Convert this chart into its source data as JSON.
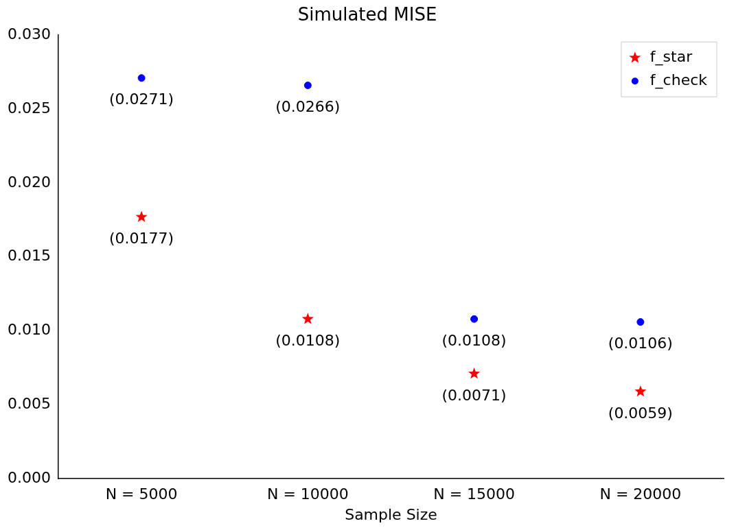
{
  "chart_data": {
    "type": "scatter",
    "title": "Simulated MISE",
    "xlabel": "Sample Size",
    "categories": [
      "N = 5000",
      "N = 10000",
      "N = 15000",
      "N = 20000"
    ],
    "series": [
      {
        "name": "f_star",
        "color": "#ff0000",
        "marker": "star",
        "values": [
          0.0177,
          0.0108,
          0.0071,
          0.0059
        ],
        "value_labels": [
          "(0.0177)",
          "(0.0108)",
          "(0.0071)",
          "(0.0059)"
        ]
      },
      {
        "name": "f_check",
        "color": "#0000ff",
        "marker": "circle",
        "values": [
          0.0271,
          0.0266,
          0.0108,
          0.0106
        ],
        "value_labels": [
          "(0.0271)",
          "(0.0266)",
          "(0.0108)",
          "(0.0106)"
        ]
      }
    ],
    "ylim": [
      0,
      0.03
    ],
    "yticks": [
      {
        "value": 0,
        "label": "0.000"
      },
      {
        "value": 0.005,
        "label": "0.005"
      },
      {
        "value": 0.01,
        "label": "0.010"
      },
      {
        "value": 0.015,
        "label": "0.015"
      },
      {
        "value": 0.02,
        "label": "0.020"
      },
      {
        "value": 0.025,
        "label": "0.025"
      },
      {
        "value": 0.03,
        "label": "0.030"
      }
    ],
    "grid": false,
    "legend": "top right"
  }
}
